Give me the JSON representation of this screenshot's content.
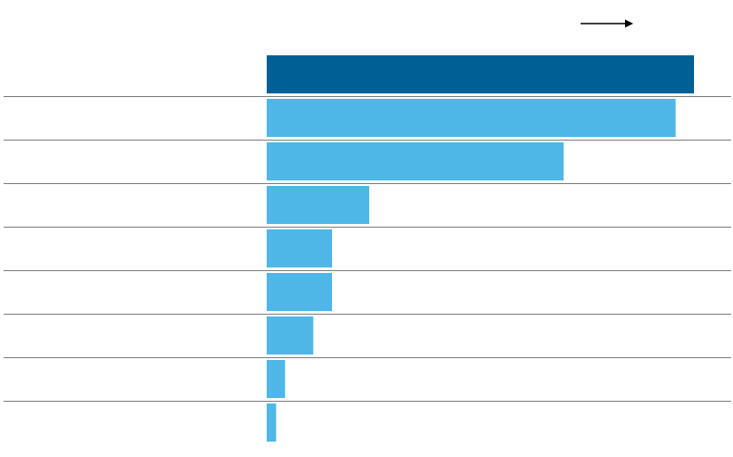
{
  "chart_data": {
    "type": "bar",
    "orientation": "horizontal",
    "categories": [
      "",
      "",
      "",
      "",
      "",
      "",
      "",
      "",
      ""
    ],
    "values": [
      100,
      95.7,
      69.5,
      24.0,
      15.3,
      15.3,
      10.9,
      4.3,
      2.2
    ],
    "highlight_index": 0,
    "colors": {
      "highlight": "#006096",
      "bar": "#4EB7E7",
      "divider": "#7a7a7a",
      "arrow": "#000000"
    },
    "title": "",
    "xlabel": "",
    "ylabel": "",
    "xlim": [
      0,
      100
    ],
    "grid": false,
    "legend": "none",
    "arrow_icon": "arrow-right-icon"
  }
}
